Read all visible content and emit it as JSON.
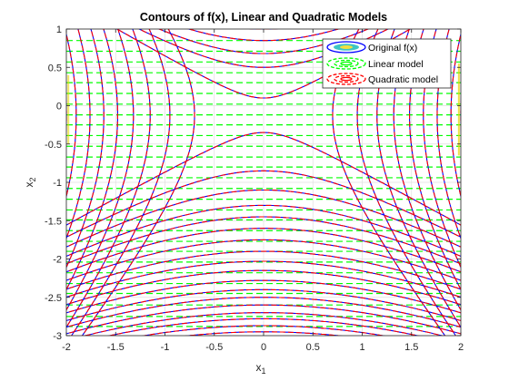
{
  "chart_data": {
    "type": "contour",
    "title": "Contours of f(x), Linear and Quadratic Models",
    "xlabel": "x",
    "xlabel_sub": "1",
    "ylabel": "x",
    "ylabel_sub": "2",
    "xlim": [
      -2,
      2
    ],
    "ylim": [
      -3,
      1
    ],
    "x_ticks": [
      -2,
      -1.5,
      -1,
      -0.5,
      0,
      0.5,
      1,
      1.5,
      2
    ],
    "x_tick_labels": [
      "-2",
      "-1.5",
      "-1",
      "-0.5",
      "0",
      "0.5",
      "1",
      "1.5",
      "2"
    ],
    "y_ticks": [
      -3,
      -2.5,
      -2,
      -1.5,
      -1,
      -0.5,
      0,
      0.5,
      1
    ],
    "y_tick_labels": [
      "-3",
      "-2.5",
      "-2",
      "-1.5",
      "-1",
      "-0.5",
      "0",
      "0.5",
      "1"
    ],
    "grid": true,
    "legend_position": "top-right",
    "series": [
      {
        "name": "Original f(x)",
        "style": "solid",
        "color": "#0000ff"
      },
      {
        "name": "Linear model",
        "style": "dashed",
        "color": "#00ff00"
      },
      {
        "name": "Quadratic model",
        "style": "dashed",
        "color": "#ff0000"
      }
    ],
    "linear_model_levels_x2": [
      -2.88,
      -2.75,
      -2.6,
      -2.45,
      -2.32,
      -2.18,
      -2.04,
      -1.9,
      -1.77,
      -1.63,
      -1.49,
      -1.36,
      -1.22,
      -1.08,
      -0.94,
      -0.8,
      -0.67,
      -0.53,
      -0.39,
      -0.25,
      -0.12,
      0.02,
      0.16,
      0.3,
      0.43,
      0.57,
      0.71,
      0.85
    ],
    "hyperbola_vertices_x2": [
      0.1,
      -0.35
    ],
    "hyperbola_saddle_x2": -0.125,
    "lower_family_vertices_x2": [
      -0.85,
      -1.1,
      -1.3,
      -1.45,
      -1.6,
      -1.75,
      -1.9,
      -2.03,
      -2.15,
      -2.28,
      -2.4,
      -2.5,
      -2.6,
      -2.7,
      -2.78,
      -2.87,
      -2.95
    ],
    "upper_family_vertices_x2": [
      0.5,
      0.68,
      0.85,
      1.0
    ],
    "side_family_vertices_x1": [
      0.7,
      0.95,
      1.15,
      1.32,
      1.48,
      1.62,
      1.76,
      1.9,
      2.0
    ]
  }
}
